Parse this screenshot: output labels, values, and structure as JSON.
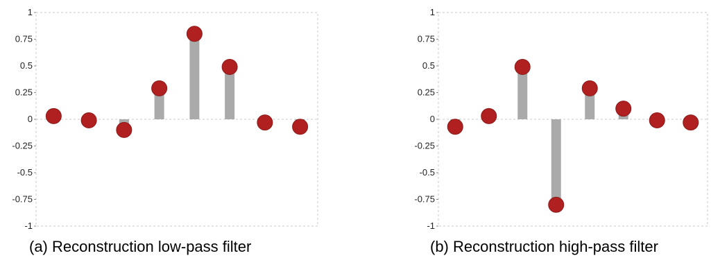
{
  "chart_data": [
    {
      "type": "stem",
      "caption": "(a) Reconstruction low-pass filter",
      "x": [
        0,
        1,
        2,
        3,
        4,
        5,
        6,
        7
      ],
      "values": [
        0.03,
        -0.01,
        -0.1,
        0.29,
        0.8,
        0.49,
        -0.03,
        -0.07
      ],
      "ylim": [
        -1,
        1
      ],
      "yticks": [
        1,
        0.75,
        0.5,
        0.25,
        0,
        -0.25,
        -0.5,
        -0.75,
        -1
      ],
      "ytick_labels": [
        "1",
        "0.75",
        "0.5",
        "0.25",
        "0",
        "-0.25",
        "-0.5",
        "-0.75",
        "-1"
      ],
      "grid": "dashed border and zero line",
      "colors": {
        "stem": "#aaaaaa",
        "marker": "#b02020"
      }
    },
    {
      "type": "stem",
      "caption": "(b) Reconstruction high-pass filter",
      "x": [
        0,
        1,
        2,
        3,
        4,
        5,
        6,
        7
      ],
      "values": [
        -0.07,
        0.03,
        0.49,
        -0.8,
        0.29,
        0.1,
        -0.01,
        -0.03
      ],
      "ylim": [
        -1,
        1
      ],
      "yticks": [
        1,
        0.75,
        0.5,
        0.25,
        0,
        -0.25,
        -0.5,
        -0.75,
        -1
      ],
      "ytick_labels": [
        "1",
        "0.75",
        "0.5",
        "0.25",
        "0",
        "-0.25",
        "-0.5",
        "-0.75",
        "-1"
      ],
      "grid": "dashed border and zero line",
      "colors": {
        "stem": "#aaaaaa",
        "marker": "#b02020"
      }
    }
  ]
}
